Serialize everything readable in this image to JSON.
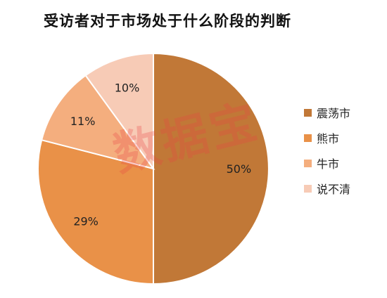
{
  "chart_data": {
    "type": "pie",
    "title": "受访者对于市场处于什么阶段的判断",
    "categories": [
      "震荡市",
      "熊市",
      "牛市",
      "说不清"
    ],
    "values": [
      50,
      29,
      11,
      10
    ],
    "data_labels": [
      "50%",
      "29%",
      "11%",
      "10%"
    ],
    "colors": [
      "#C17837",
      "#E99148",
      "#F4AE7E",
      "#F7CBB6"
    ],
    "legend_position": "right"
  },
  "watermark": "数据宝"
}
